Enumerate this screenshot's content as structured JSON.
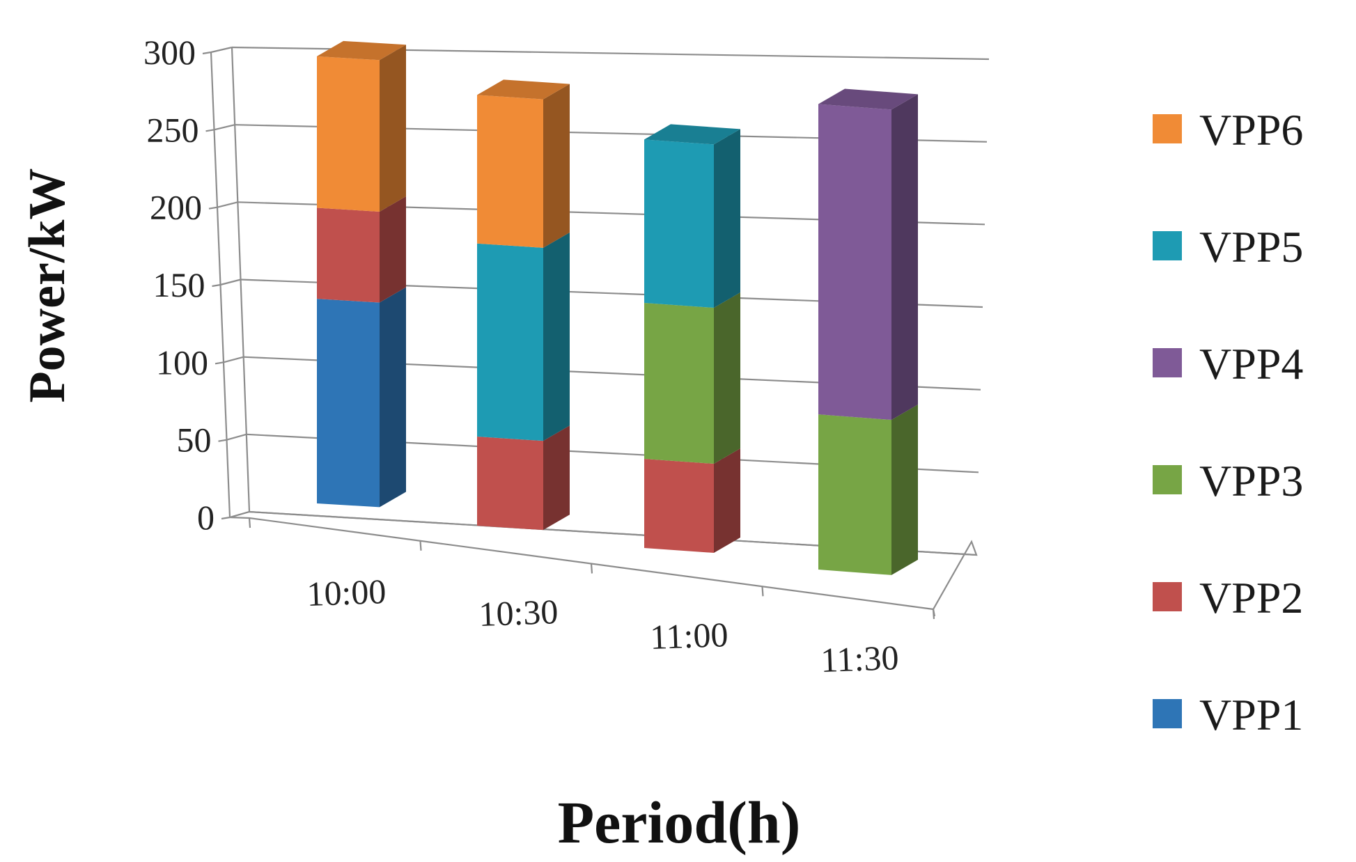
{
  "chart_data": {
    "type": "bar",
    "variant": "stacked-3d",
    "title": "",
    "xlabel": "Period(h)",
    "ylabel": "Power/kW",
    "ylim": [
      0,
      300
    ],
    "yticks": [
      "0",
      "50",
      "100",
      "150",
      "200",
      "250",
      "300"
    ],
    "ytick_values": [
      0,
      50,
      100,
      150,
      200,
      250,
      300
    ],
    "grid": true,
    "legend_position": "right",
    "categories": [
      "10:00",
      "10:30",
      "11:00",
      "11:30"
    ],
    "series": [
      {
        "name": "VPP1",
        "color": "#2e75b6",
        "values": [
          135,
          0,
          0,
          0
        ]
      },
      {
        "name": "VPP2",
        "color": "#c0504d",
        "values": [
          60,
          60,
          60,
          0
        ]
      },
      {
        "name": "VPP3",
        "color": "#77a545",
        "values": [
          0,
          0,
          105,
          105
        ]
      },
      {
        "name": "VPP4",
        "color": "#7f5a97",
        "values": [
          0,
          0,
          0,
          210
        ]
      },
      {
        "name": "VPP5",
        "color": "#1e9bb3",
        "values": [
          0,
          130,
          110,
          0
        ]
      },
      {
        "name": "VPP6",
        "color": "#f08b36",
        "values": [
          100,
          100,
          0,
          0
        ]
      }
    ],
    "legend_order": [
      "VPP6",
      "VPP5",
      "VPP4",
      "VPP3",
      "VPP2",
      "VPP1"
    ]
  }
}
